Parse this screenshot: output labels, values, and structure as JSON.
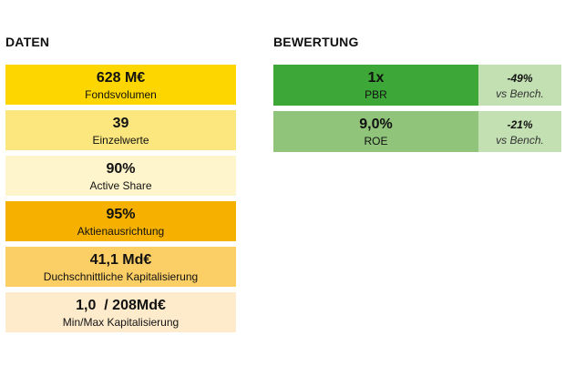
{
  "daten": {
    "title": "DATEN",
    "cards": [
      {
        "value": "628 M€",
        "label": "Fondsvolumen",
        "color": "#FDD600"
      },
      {
        "value": "39",
        "label": "Einzelwerte",
        "color": "#FCE77E"
      },
      {
        "value": "90%",
        "label": "Active Share",
        "color": "#FFF5CC"
      },
      {
        "value": "95%",
        "label": "Aktienausrichtung",
        "color": "#F6B100"
      },
      {
        "value": "41,1 Md€",
        "label": "Duchschnittliche Kapitalisierung",
        "color": "#FCCF66"
      },
      {
        "value": "1,0  / 208Md€",
        "label": "Min/Max Kapitalisierung",
        "color": "#FEEBCC"
      }
    ]
  },
  "bewertung": {
    "title": "BEWERTUNG",
    "metrics": [
      {
        "value": "1x",
        "label": "PBR",
        "delta": "-49%",
        "bench": "vs Bench.",
        "main_color": "#3DA838",
        "side_color": "#C3E0B3"
      },
      {
        "value": "9,0%",
        "label": "ROE",
        "delta": "-21%",
        "bench": "vs Bench.",
        "main_color": "#8FC47A",
        "side_color": "#C3E0B3"
      }
    ]
  }
}
